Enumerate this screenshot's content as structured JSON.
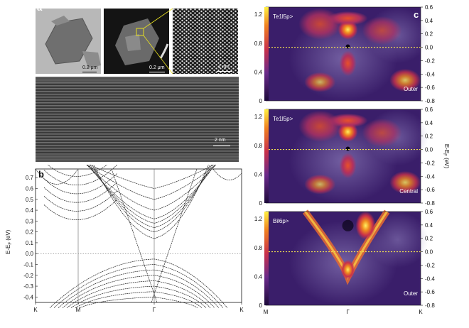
{
  "figure": {
    "panel_a": {
      "letter": "a",
      "scalebar_tem": "0.2 μm",
      "scalebar_haadf": "0.2 μm",
      "scalebar_atomic": "1 nm",
      "scalebar_cross": "2 nm"
    },
    "panel_b": {
      "letter": "b",
      "ylabel": "E-E",
      "ylabel_sub": "F",
      "ylabel_unit": " (eV)",
      "yticks": [
        "0.7",
        "0.6",
        "0.5",
        "0.4",
        "0.3",
        "0.2",
        "0.1",
        "0.0",
        "-0.1",
        "-0.2",
        "-0.3",
        "-0.4"
      ],
      "xticks": [
        "K",
        "M",
        "Γ",
        "K"
      ]
    },
    "panel_c": {
      "letter": "c",
      "maps": [
        {
          "orbital": "Te1l5p>",
          "position": "Outer"
        },
        {
          "orbital": "Te1l5p>",
          "position": "Central"
        },
        {
          "orbital": "Bil6p>",
          "position": "Outer"
        }
      ],
      "colorbar_ticks": [
        "0",
        "0.4",
        "0.8",
        "1.2"
      ],
      "right_ticks": [
        "0.6",
        "0.4",
        "0.2",
        "0.0",
        "-0.2",
        "-0.4",
        "-0.6",
        "-0.8"
      ],
      "right_label": "E-E",
      "right_label_sub": "F",
      "right_label_unit": " (eV)",
      "xticks": [
        "M",
        "Γ",
        "K"
      ]
    }
  },
  "chart_data": [
    {
      "type": "line",
      "panel": "b",
      "xlabel": "",
      "ylabel": "E-EF (eV)",
      "x_ticks": [
        "K",
        "M",
        "Γ",
        "K"
      ],
      "ylim": [
        -0.45,
        0.78
      ],
      "fermi_level": 0.0,
      "series": [
        {
          "values_at_gamma": [
            0.14,
            0.2,
            0.24,
            0.28,
            0.32,
            0.4,
            0.5,
            0.6
          ]
        },
        {
          "values_at_gamma": [
            -0.05,
            -0.1,
            -0.15,
            -0.2,
            -0.25,
            -0.3,
            -0.35,
            -0.4
          ]
        }
      ]
    },
    {
      "type": "heatmap",
      "panel": "c",
      "x_ticks": [
        "M",
        "Γ",
        "K"
      ],
      "ylim": [
        -0.8,
        0.6
      ],
      "colorbar_range": [
        0,
        1.3
      ],
      "maps": [
        "Te1l5p> Outer",
        "Te1l5p> Central",
        "Bil6p> Outer"
      ]
    }
  ]
}
